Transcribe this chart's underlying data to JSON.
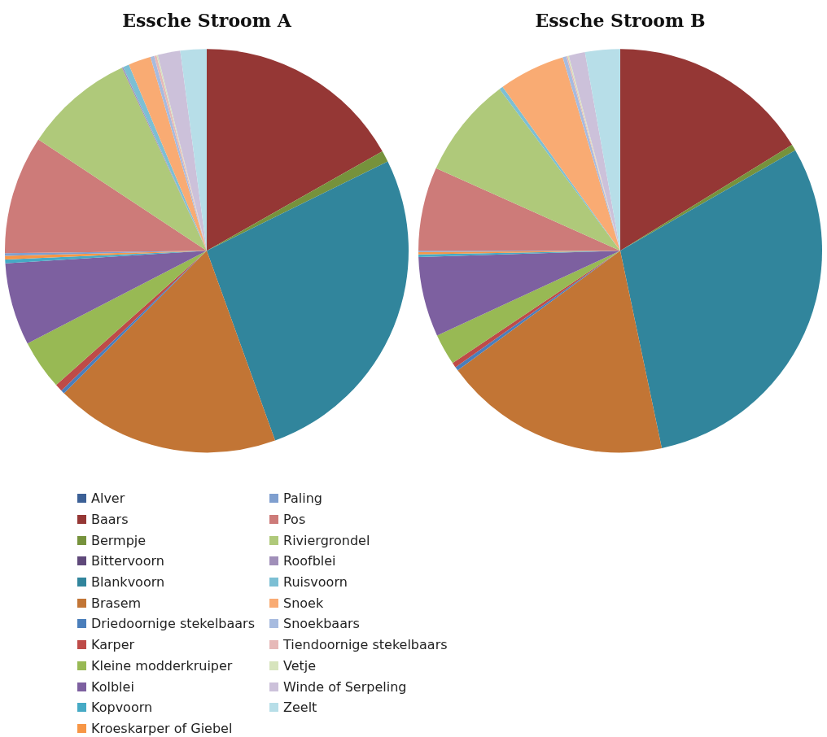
{
  "chart_data": [
    {
      "type": "pie",
      "title": "Essche Stroom A",
      "legend": "bottom",
      "categories": [
        "Alver",
        "Baars",
        "Bermpje",
        "Bittervoorn",
        "Blankvoorn",
        "Brasem",
        "Driedoornige stekelbaars",
        "Karper",
        "Kleine modderkruiper",
        "Kolblei",
        "Kopvoorn",
        "Kroeskarper of Giebel",
        "Paling",
        "Pos",
        "Riviergrondel",
        "Roofblei",
        "Ruisvoorn",
        "Snoek",
        "Snoekbaars",
        "Tiendoornige stekelbaars",
        "Vetje",
        "Winde of Serpeling",
        "Zeelt"
      ],
      "values": [
        0,
        16.8,
        0.9,
        0,
        26.8,
        18.0,
        0.3,
        0.6,
        4.0,
        6.6,
        0.3,
        0.3,
        0.2,
        9.5,
        8.8,
        0.1,
        0.5,
        1.8,
        0.3,
        0.2,
        0.1,
        1.8,
        2.1
      ],
      "colors": [
        "#3c6096",
        "#953735",
        "#76923c",
        "#5f497a",
        "#31859c",
        "#c27535",
        "#4a7ebb",
        "#be4b48",
        "#98b954",
        "#7d60a0",
        "#46aac5",
        "#f79646",
        "#7f9fcf",
        "#cd7b79",
        "#afc97a",
        "#a08fb9",
        "#7cbfd4",
        "#f9ab73",
        "#a7bbdf",
        "#e6b9b8",
        "#d7e4bd",
        "#ccc1da",
        "#b7dee8"
      ]
    },
    {
      "type": "pie",
      "title": "Essche Stroom B",
      "categories": [
        null,
        null,
        null,
        null,
        null,
        null,
        null,
        null,
        null,
        null,
        null,
        null,
        null,
        null,
        null,
        null,
        null,
        null,
        null,
        null,
        null,
        null,
        null
      ],
      "values": [
        0,
        16.2,
        0.5,
        0,
        30.0,
        18.2,
        0.3,
        0.4,
        2.5,
        6.4,
        0.2,
        0.2,
        0.1,
        6.7,
        8.1,
        0,
        0.3,
        5.3,
        0.3,
        0.1,
        0.1,
        1.3,
        2.8
      ],
      "colors": [
        "#3c6096",
        "#953735",
        "#76923c",
        "#5f497a",
        "#31859c",
        "#c27535",
        "#4a7ebb",
        "#be4b48",
        "#98b954",
        "#7d60a0",
        "#46aac5",
        "#f79646",
        "#7f9fcf",
        "#cd7b79",
        "#afc97a",
        "#a08fb9",
        "#7cbfd4",
        "#f9ab73",
        "#a7bbdf",
        "#e6b9b8",
        "#d7e4bd",
        "#ccc1da",
        "#b7dee8"
      ]
    }
  ]
}
